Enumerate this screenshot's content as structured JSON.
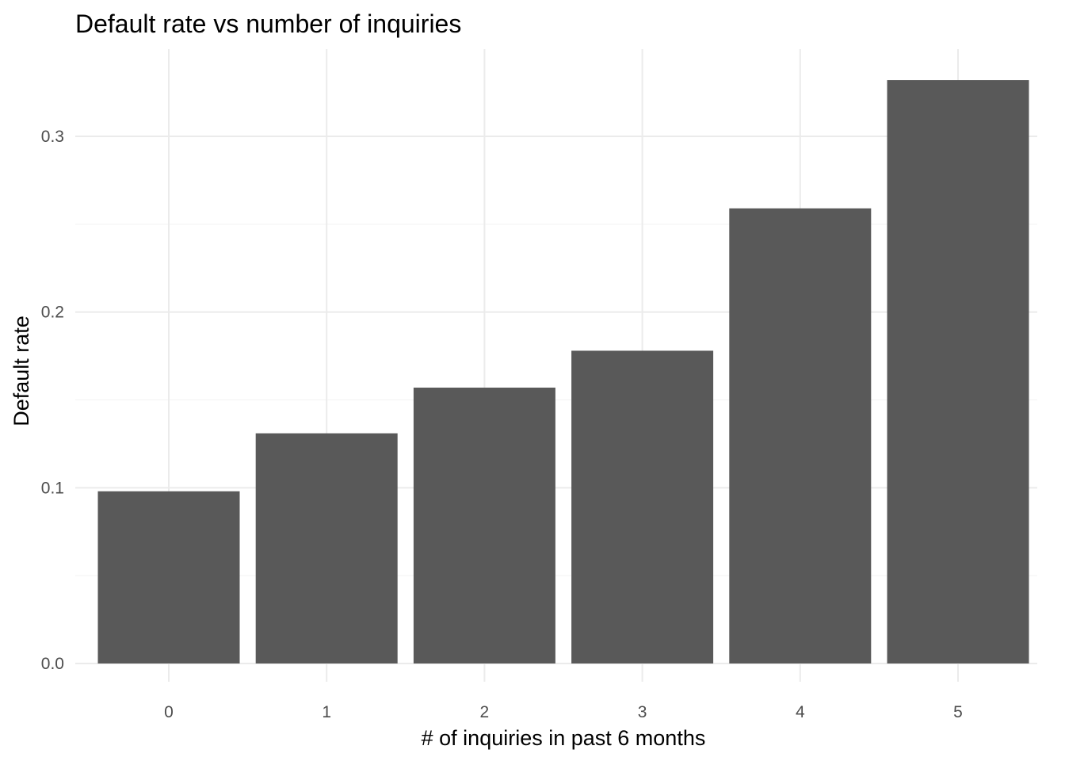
{
  "chart_data": {
    "type": "bar",
    "title": "Default rate vs number of inquiries",
    "xlabel": "# of inquiries in past 6 months",
    "ylabel": "Default rate",
    "categories": [
      "0",
      "1",
      "2",
      "3",
      "4",
      "5"
    ],
    "values": [
      0.098,
      0.131,
      0.157,
      0.178,
      0.259,
      0.332
    ],
    "ylim": [
      0,
      0.345
    ],
    "yticks": [
      0.0,
      0.1,
      0.2,
      0.3
    ],
    "ytick_labels": [
      "0.0",
      "0.1",
      "0.2",
      "0.3"
    ],
    "bar_color": "#595959",
    "grid": true,
    "legend": "none"
  }
}
